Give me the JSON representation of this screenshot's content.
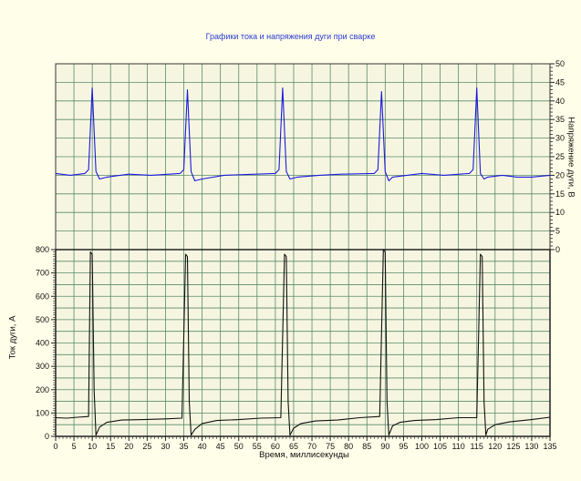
{
  "chart_data": [
    {
      "type": "line",
      "title": "Графики тока и напряжения дуги при сварке",
      "ylabel": "Напряжение дуги, В",
      "yaxis_side": "right",
      "xlim": [
        0,
        135
      ],
      "ylim": [
        0,
        50
      ],
      "yticks": [
        0,
        5,
        10,
        15,
        20,
        25,
        30,
        35,
        40,
        45,
        50
      ],
      "grid": true,
      "series": [
        {
          "color": "#1a1adf",
          "x": [
            0,
            4,
            8,
            9,
            10,
            11,
            12,
            14,
            20,
            26,
            34,
            35,
            36,
            37,
            38,
            40,
            46,
            52,
            60,
            61,
            62,
            63,
            64,
            66,
            72,
            78,
            87,
            88,
            89,
            90,
            91,
            92,
            96,
            100,
            106,
            113,
            114,
            115,
            116,
            117,
            118,
            122,
            126,
            130,
            135
          ],
          "y": [
            20.5,
            20.0,
            20.5,
            21.5,
            43.5,
            21.0,
            19.0,
            19.5,
            20.3,
            20.0,
            20.5,
            21.5,
            43.0,
            21.0,
            18.5,
            19.0,
            20.0,
            20.2,
            20.5,
            21.5,
            43.5,
            21.0,
            19.0,
            19.5,
            20.0,
            20.3,
            20.5,
            21.5,
            42.5,
            21.0,
            18.5,
            19.5,
            20.0,
            20.5,
            20.0,
            20.5,
            21.5,
            43.5,
            20.5,
            19.0,
            19.5,
            20.0,
            19.5,
            19.5,
            20.0
          ]
        }
      ]
    },
    {
      "type": "line",
      "ylabel": "Ток дуги, А",
      "xlabel": "Время, миллисекунды",
      "xlim": [
        0,
        135
      ],
      "ylim": [
        0,
        800
      ],
      "xticks": [
        0,
        5,
        10,
        15,
        20,
        25,
        30,
        35,
        40,
        45,
        50,
        55,
        60,
        65,
        70,
        75,
        80,
        85,
        90,
        95,
        100,
        105,
        110,
        115,
        120,
        125,
        130,
        135
      ],
      "yticks": [
        0,
        100,
        200,
        300,
        400,
        500,
        600,
        700,
        800
      ],
      "grid": true,
      "series": [
        {
          "color": "#111111",
          "x": [
            0,
            3,
            6,
            9,
            9.5,
            10,
            10.5,
            11,
            12,
            14,
            18,
            24,
            30,
            34.5,
            35.5,
            36,
            36.5,
            37,
            38,
            40,
            44,
            50,
            56,
            61.5,
            62.5,
            63,
            63.5,
            64,
            65,
            67,
            71,
            77,
            83,
            88.5,
            89.5,
            90,
            90.5,
            91,
            92,
            94,
            98,
            104,
            110,
            115,
            116,
            116.5,
            117,
            117.5,
            118,
            120,
            124,
            130,
            135
          ],
          "y": [
            80,
            78,
            82,
            85,
            790,
            780,
            200,
            5,
            40,
            60,
            70,
            72,
            75,
            78,
            780,
            770,
            150,
            5,
            30,
            55,
            68,
            72,
            78,
            80,
            780,
            770,
            150,
            5,
            35,
            55,
            66,
            70,
            80,
            85,
            800,
            790,
            150,
            5,
            45,
            60,
            68,
            72,
            80,
            80,
            780,
            770,
            150,
            5,
            30,
            50,
            62,
            72,
            82
          ]
        }
      ]
    }
  ]
}
